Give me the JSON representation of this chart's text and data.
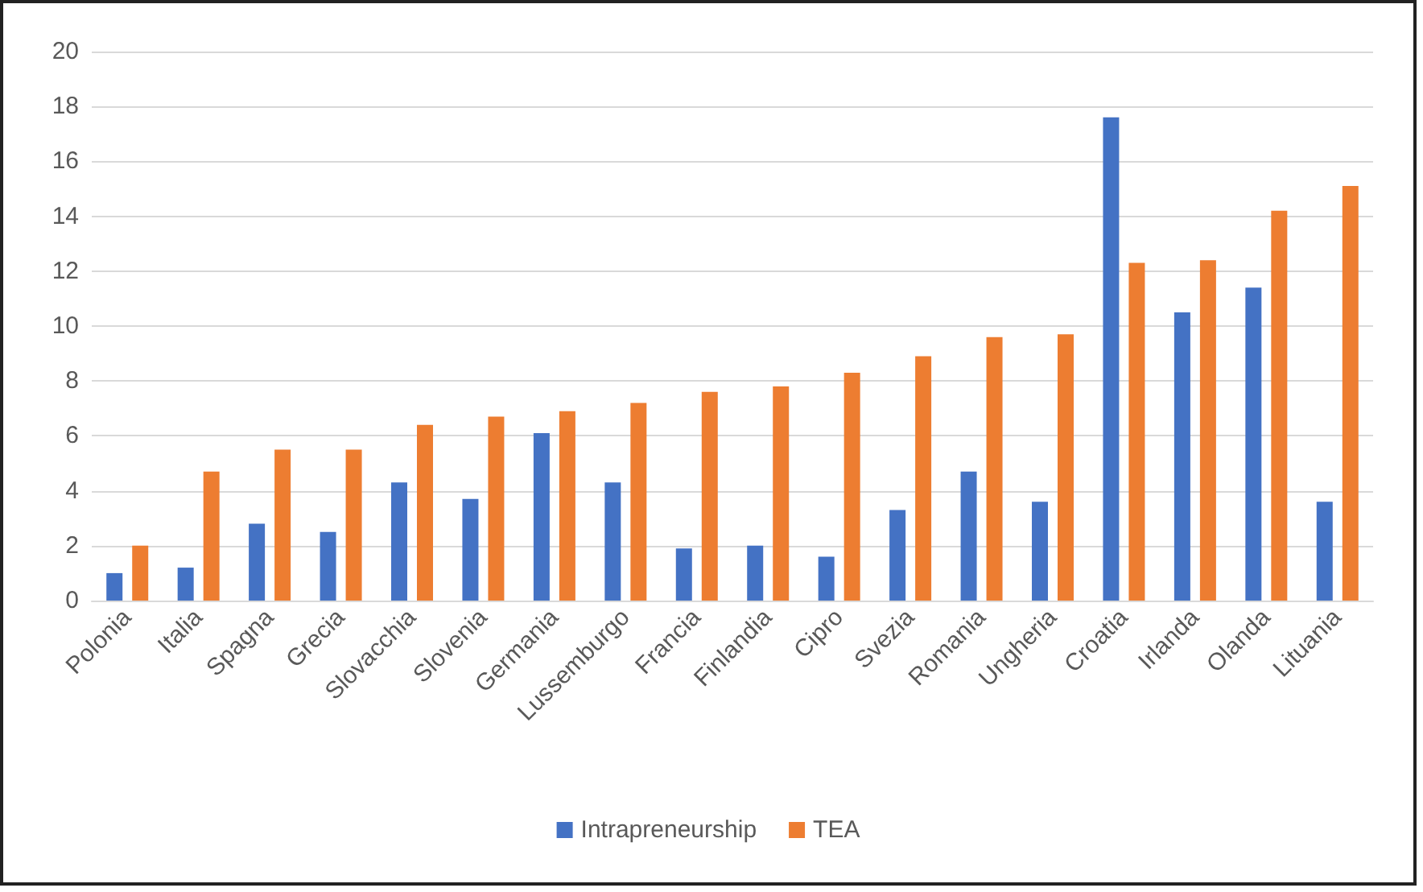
{
  "chart_data": {
    "type": "bar",
    "categories": [
      "Polonia",
      "Italia",
      "Spagna",
      "Grecia",
      "Slovacchia",
      "Slovenia",
      "Germania",
      "Lussemburgo",
      "Francia",
      "Finlandia",
      "Cipro",
      "Svezia",
      "Romania",
      "Ungheria",
      "Croatia",
      "Irlanda",
      "Olanda",
      "Lituania"
    ],
    "series": [
      {
        "name": "Intrapreneurship",
        "color": "#4472c4",
        "values": [
          1.0,
          1.2,
          2.8,
          2.5,
          4.3,
          3.7,
          6.1,
          4.3,
          1.9,
          2.0,
          1.6,
          3.3,
          4.7,
          3.6,
          17.6,
          10.5,
          11.4,
          3.6
        ]
      },
      {
        "name": "TEA",
        "color": "#ed7d31",
        "values": [
          2.0,
          4.7,
          5.5,
          5.5,
          6.4,
          6.7,
          6.9,
          7.2,
          7.6,
          7.8,
          8.3,
          8.9,
          9.6,
          9.7,
          12.3,
          12.4,
          14.2,
          15.1
        ]
      }
    ],
    "ylim": [
      0,
      20
    ],
    "yticks": [
      0,
      2,
      4,
      6,
      8,
      10,
      12,
      14,
      16,
      18,
      20
    ],
    "grid": "y",
    "legend": "bottom"
  }
}
